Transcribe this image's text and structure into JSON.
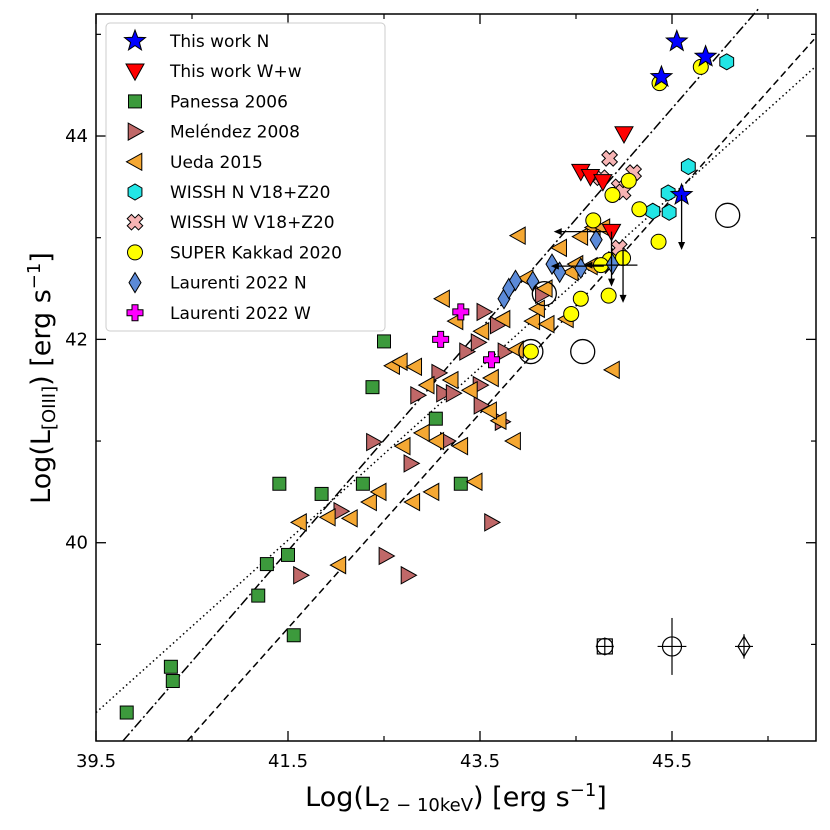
{
  "chart_data": {
    "type": "scatter",
    "xlabel": "Log(L_{2-10keV}) [erg s^{-1}]",
    "ylabel": "Log(L_{[OIII]}) [erg s^{-1}]",
    "xlim": [
      39.5,
      47.0
    ],
    "ylim": [
      38.05,
      45.2
    ],
    "x_ticks": [
      39.5,
      41.5,
      43.5,
      45.5
    ],
    "x_tick_labels": [
      "39.5",
      "41.5",
      "43.5",
      "45.5"
    ],
    "y_ticks": [
      40,
      42,
      44
    ],
    "y_tick_labels": [
      "40",
      "42",
      "44"
    ],
    "legend_position": "top-left",
    "grid": false,
    "series": [
      {
        "name": "This work N",
        "marker": "star",
        "color": "#0000ff",
        "x": [
          45.39,
          45.55,
          45.85,
          45.6
        ],
        "y": [
          44.58,
          44.93,
          44.78,
          43.42
        ]
      },
      {
        "name": "This work W+w",
        "marker": "triangle-down",
        "color": "#ff0000",
        "x": [
          44.55,
          44.65,
          44.78,
          44.87,
          45.0
        ],
        "y": [
          43.65,
          43.6,
          43.55,
          43.06,
          44.02
        ]
      },
      {
        "name": "Panessa 2006",
        "marker": "square",
        "color": "#3c9a3c",
        "x": [
          39.82,
          40.28,
          40.3,
          41.19,
          41.28,
          41.5,
          41.56,
          41.41,
          41.85,
          42.28,
          42.38,
          42.5,
          43.04,
          43.3
        ],
        "y": [
          38.33,
          38.78,
          38.64,
          39.48,
          39.79,
          39.88,
          39.09,
          40.58,
          40.48,
          40.58,
          41.53,
          41.98,
          41.22,
          40.58
        ]
      },
      {
        "name": "Meléndez 2008",
        "marker": "triangle-right",
        "color": "#c06868",
        "x": [
          42.05,
          42.52,
          42.75,
          42.85,
          43.16,
          43.5,
          43.62,
          43.73,
          43.07,
          43.12,
          43.51,
          43.68,
          41.63,
          42.39,
          42.78,
          43.22,
          43.36,
          43.48,
          43.54,
          44.15,
          43.76
        ],
        "y": [
          40.31,
          39.87,
          39.68,
          41.45,
          41.0,
          41.55,
          40.2,
          41.19,
          41.67,
          41.47,
          41.35,
          42.14,
          39.68,
          40.99,
          40.78,
          41.47,
          41.88,
          41.97,
          42.27,
          42.44,
          41.88
        ]
      },
      {
        "name": "Ueda 2015",
        "marker": "triangle-left",
        "color": "#f5a833",
        "x": [
          41.62,
          41.92,
          42.03,
          42.15,
          42.35,
          42.45,
          42.59,
          42.67,
          42.82,
          42.95,
          43.05,
          43.11,
          43.25,
          43.4,
          43.52,
          43.62,
          43.74,
          43.88,
          43.98,
          44.05,
          44.18,
          44.33,
          44.45,
          44.55,
          44.68,
          44.78,
          44.88,
          42.7,
          42.9,
          43.2,
          43.45,
          43.7,
          43.85,
          44.1,
          44.4,
          44.65,
          42.8,
          43.0,
          43.3,
          43.6,
          43.9,
          44.2,
          44.5
        ],
        "y": [
          40.2,
          40.25,
          39.78,
          40.24,
          40.4,
          40.5,
          41.74,
          41.78,
          41.73,
          41.55,
          41.0,
          42.4,
          42.18,
          41.5,
          42.08,
          41.62,
          42.2,
          41.9,
          42.6,
          42.18,
          42.5,
          42.9,
          42.66,
          43.01,
          43.1,
          43.1,
          41.7,
          40.95,
          41.08,
          41.6,
          40.6,
          41.2,
          41.0,
          42.3,
          42.2,
          42.72,
          40.4,
          40.5,
          40.95,
          41.3,
          43.02,
          42.15,
          42.74
        ]
      },
      {
        "name": "WISSH N V18+Z20",
        "marker": "hexagon",
        "color": "#22e5e5",
        "x": [
          46.07,
          45.3,
          45.46,
          45.47,
          45.67
        ],
        "y": [
          44.73,
          43.26,
          43.44,
          43.25,
          43.7
        ]
      },
      {
        "name": "WISSH W V18+Z20",
        "marker": "x",
        "color": "#f7b4b4",
        "x": [
          44.76,
          44.85,
          44.95,
          44.99,
          44.95,
          45.1
        ],
        "y": [
          43.59,
          43.78,
          43.5,
          43.45,
          42.9,
          43.64
        ]
      },
      {
        "name": "SUPER Kakkad 2020",
        "marker": "circle",
        "color": "#ffff00",
        "x": [
          45.37,
          45.8,
          44.88,
          44.68,
          45.05,
          44.85,
          45.16,
          45.36,
          44.03,
          44.45,
          44.55,
          44.84,
          44.99,
          44.76
        ],
        "y": [
          44.52,
          44.68,
          43.42,
          43.17,
          43.56,
          42.78,
          43.28,
          42.96,
          41.88,
          42.25,
          42.4,
          42.43,
          42.8,
          42.73
        ]
      },
      {
        "name": "Laurenti 2022 N",
        "marker": "diamond",
        "color": "#5b8ad8",
        "x": [
          43.75,
          43.8,
          43.87,
          44.05,
          44.25,
          44.33,
          44.55,
          44.71,
          44.88
        ],
        "y": [
          42.4,
          42.5,
          42.58,
          42.57,
          42.74,
          42.66,
          42.7,
          42.98,
          42.74
        ]
      },
      {
        "name": "Laurenti 2022 W",
        "marker": "plus",
        "color": "#ff00ff",
        "x": [
          43.3,
          43.09,
          43.62
        ],
        "y": [
          42.27,
          42.0,
          41.8
        ]
      }
    ],
    "upper_limits": [
      {
        "x": 45.6,
        "y": 43.42
      },
      {
        "x": 44.87,
        "y": 43.06
      },
      {
        "x": 44.99,
        "y": 42.9
      }
    ],
    "left_arrows": [
      {
        "x": 44.82,
        "y": 43.06
      },
      {
        "x": 44.79,
        "y": 42.72
      },
      {
        "x": 45.14,
        "y": 42.73
      }
    ],
    "circled_points": [
      {
        "x": 46.08,
        "y": 43.22,
        "marker": "triangle-right"
      },
      {
        "x": 44.17,
        "y": 42.45,
        "marker": "triangle-right"
      },
      {
        "x": 44.57,
        "y": 41.88,
        "marker": "triangle-right"
      },
      {
        "x": 44.03,
        "y": 41.88,
        "marker": "circle"
      }
    ],
    "error_bar_samples": [
      {
        "x": 44.8,
        "y": 38.98,
        "marker": "square",
        "xerr": 0.05,
        "yerr": 0.07
      },
      {
        "x": 45.5,
        "y": 38.98,
        "marker": "circle",
        "xerr": 0.15,
        "yerr": 0.28
      },
      {
        "x": 46.25,
        "y": 38.98,
        "marker": "diamond",
        "xerr": 0.06,
        "yerr": 0.12
      }
    ],
    "relations": [
      {
        "style": "dashdot",
        "x": [
          39.78,
          46.4
        ],
        "y": [
          38.05,
          45.25
        ]
      },
      {
        "style": "dashed",
        "x": [
          40.45,
          46.98
        ],
        "y": [
          38.05,
          44.95
        ]
      },
      {
        "style": "dotted",
        "x": [
          39.5,
          46.98
        ],
        "y": [
          38.33,
          44.67
        ]
      }
    ]
  }
}
